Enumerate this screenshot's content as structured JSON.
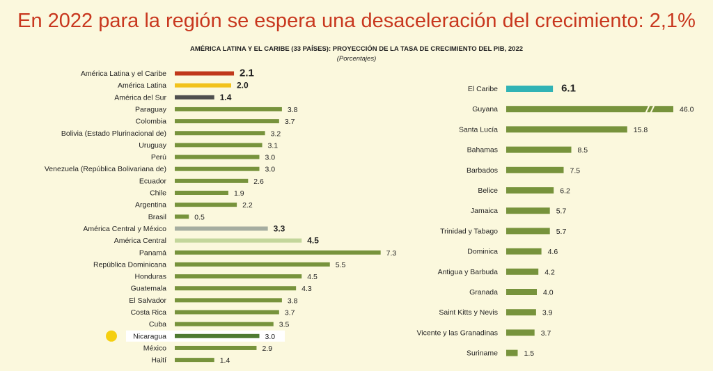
{
  "title": "En 2022 para la región se espera una desaceleración del crecimiento:  2,1%",
  "chart_data": [
    {
      "type": "bar",
      "orientation": "horizontal",
      "title": "AMÉRICA LATINA Y EL CARIBE (33 PAÍSES): PROYECCIÓN DE LA TASA DE CRECIMIENTO DEL PIB, 2022",
      "subtitle": "(Porcentajes)",
      "categories": [
        "América Latina y el Caribe",
        "América Latina",
        "América del Sur",
        "Paraguay",
        "Colombia",
        "Bolivia (Estado Plurinacional de)",
        "Uruguay",
        "Perú",
        "Venezuela (República Bolivariana de)",
        "Ecuador",
        "Chile",
        "Argentina",
        "Brasil",
        "América Central y México",
        "América Central",
        "Panamá",
        "República Dominicana",
        "Honduras",
        "Guatemala",
        "El Salvador",
        "Costa Rica",
        "Cuba",
        "Nicaragua",
        "México",
        "Haití"
      ],
      "value_labels": [
        "2.1",
        "2.0",
        "1.4",
        "3.8",
        "3.7",
        "3.2",
        "3.1",
        "3.0",
        "3.0",
        "2.6",
        "1.9",
        "2.2",
        "0.5",
        "3.3",
        "4.5",
        "7.3",
        "5.5",
        "4.5",
        "4.3",
        "3.8",
        "3.7",
        "3.5",
        "3.0",
        "2.9",
        "1.4"
      ],
      "values": [
        2.1,
        2.0,
        1.4,
        3.8,
        3.7,
        3.2,
        3.1,
        3.0,
        3.0,
        2.6,
        1.9,
        2.2,
        0.5,
        3.3,
        4.5,
        7.3,
        5.5,
        4.5,
        4.3,
        3.8,
        3.7,
        3.5,
        3.0,
        2.9,
        1.4
      ],
      "colors": [
        "#c0381b",
        "#f2c21b",
        "#4f4f4f",
        "#77933c",
        "#77933c",
        "#77933c",
        "#77933c",
        "#77933c",
        "#77933c",
        "#77933c",
        "#77933c",
        "#77933c",
        "#77933c",
        "#a5ada0",
        "#c3d69b",
        "#77933c",
        "#77933c",
        "#77933c",
        "#77933c",
        "#77933c",
        "#77933c",
        "#77933c",
        "#4e7a31",
        "#77933c",
        "#77933c"
      ],
      "highlight": "Nicaragua",
      "highlight_marker_color": "#f5cf10"
    },
    {
      "type": "bar",
      "orientation": "horizontal",
      "categories": [
        "El Caribe",
        "Guyana",
        "Santa Lucía",
        "Bahamas",
        "Barbados",
        "Belice",
        "Jamaica",
        "Trinidad y Tabago",
        "Dominica",
        "Antigua y Barbuda",
        "Granada",
        "Saint Kitts y Nevis",
        "Vicente y las Granadinas",
        "Suriname"
      ],
      "value_labels": [
        "6.1",
        "46.0",
        "15.8",
        "8.5",
        "7.5",
        "6.2",
        "5.7",
        "5.7",
        "4.6",
        "4.2",
        "4.0",
        "3.9",
        "3.7",
        "1.5"
      ],
      "values": [
        6.1,
        46.0,
        15.8,
        8.5,
        7.5,
        6.2,
        5.7,
        5.7,
        4.6,
        4.2,
        4.0,
        3.9,
        3.7,
        1.5
      ],
      "colors": [
        "#31b3b5",
        "#77933c",
        "#77933c",
        "#77933c",
        "#77933c",
        "#77933c",
        "#77933c",
        "#77933c",
        "#77933c",
        "#77933c",
        "#77933c",
        "#77933c",
        "#77933c",
        "#77933c"
      ],
      "axis_break": "Guyana"
    }
  ]
}
